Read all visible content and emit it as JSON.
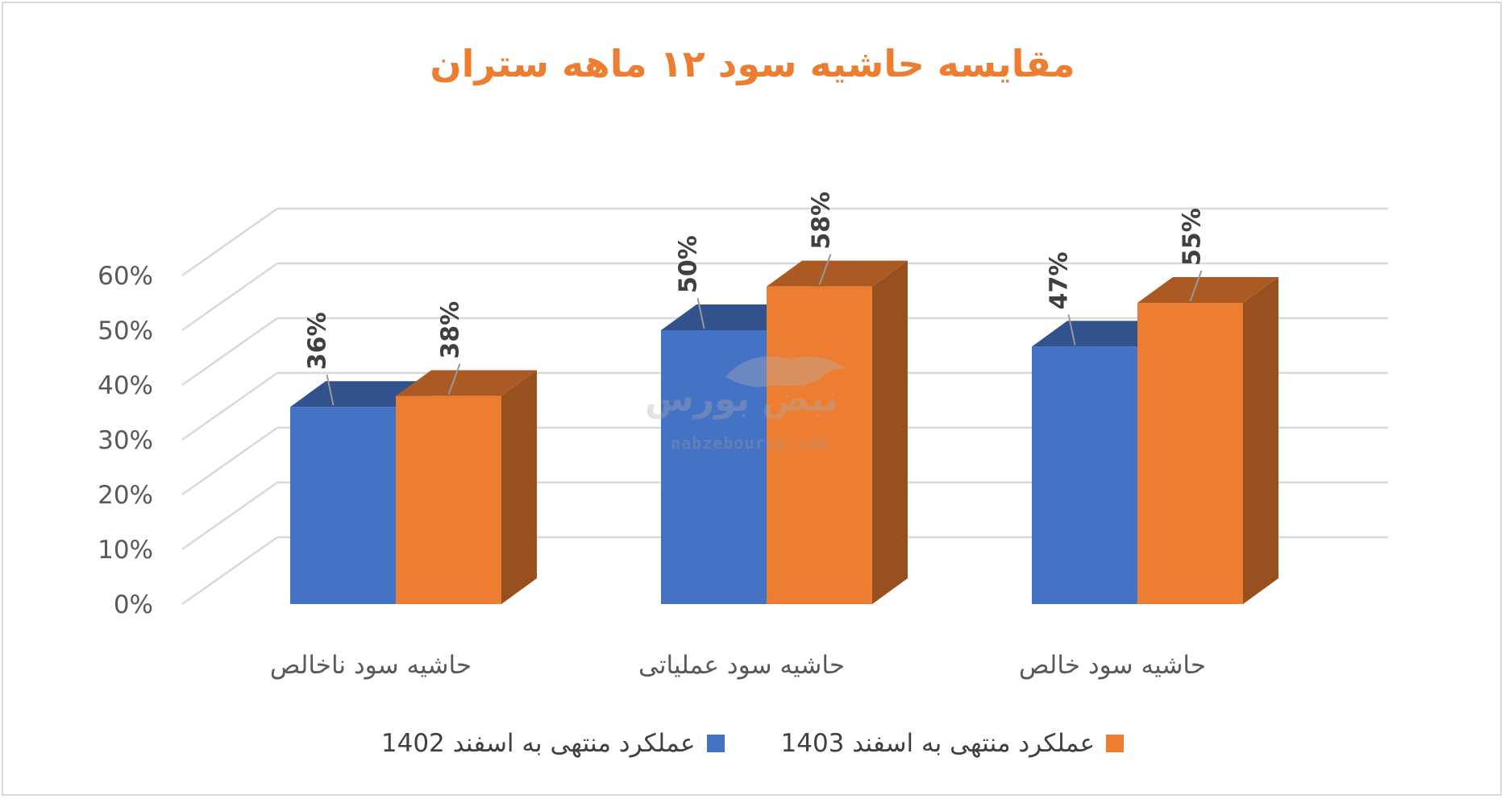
{
  "chart_data": {
    "type": "bar",
    "title": "مقایسه حاشیه سود ۱۲ ماهه ستران",
    "categories": [
      "حاشیه سود ناخالص",
      "حاشیه سود عملیاتی",
      "حاشیه سود خالص"
    ],
    "series": [
      {
        "name": "عملکرد منتهی به اسفند 1402",
        "values": [
          36,
          50,
          47
        ],
        "labels": [
          "36%",
          "50%",
          "47%"
        ],
        "color": "#4472c4"
      },
      {
        "name": "عملکرد منتهی به اسفند 1403",
        "values": [
          38,
          58,
          55
        ],
        "labels": [
          "38%",
          "58%",
          "55%"
        ],
        "color": "#ed7d31"
      }
    ],
    "ylim": [
      0,
      60
    ],
    "yticks": [
      "0%",
      "10%",
      "20%",
      "30%",
      "40%",
      "50%",
      "60%"
    ],
    "grid": true,
    "legend_position": "bottom",
    "style_3d": true
  },
  "colors": {
    "title": "#ed7d31",
    "axis_text": "#595959",
    "grid": "#d9d9d9"
  },
  "watermark": {
    "text_fa": "نبض بورس",
    "text_en": "nabzebourse.com"
  }
}
